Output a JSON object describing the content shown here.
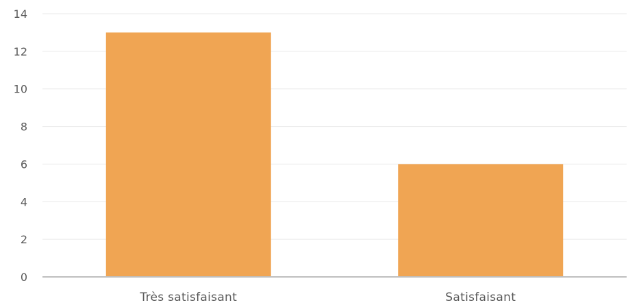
{
  "chart_data": {
    "type": "bar",
    "categories": [
      "Très satisfaisant",
      "Satisfaisant"
    ],
    "values": [
      13,
      6
    ],
    "ylim": [
      0,
      14
    ],
    "y_ticks": [
      0,
      2,
      4,
      6,
      8,
      10,
      12,
      14
    ],
    "grid": true,
    "legend": "none",
    "bar_color": "#F0A553",
    "title": "",
    "xlabel": "",
    "ylabel": ""
  }
}
